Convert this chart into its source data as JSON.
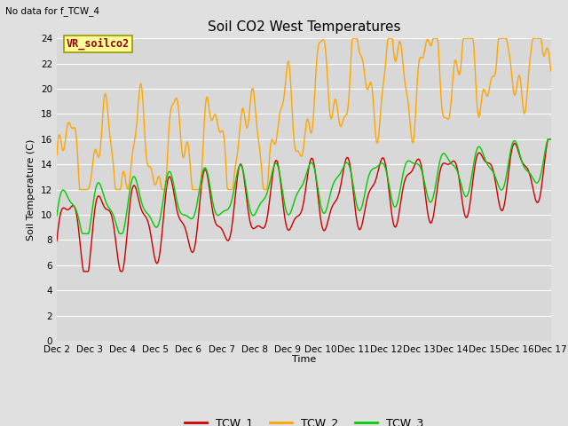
{
  "title": "Soil CO2 West Temperatures",
  "xlabel": "Time",
  "ylabel": "Soil Temperature (C)",
  "no_data_label": "No data for f_TCW_4",
  "vr_label": "VR_soilco2",
  "ylim": [
    0,
    24
  ],
  "yticks": [
    0,
    2,
    4,
    6,
    8,
    10,
    12,
    14,
    16,
    18,
    20,
    22,
    24
  ],
  "xtick_labels": [
    "Dec 2",
    "Dec 3",
    "Dec 4",
    "Dec 5",
    "Dec 6",
    "Dec 7",
    "Dec 8",
    "Dec 9",
    "Dec 10",
    "Dec 11",
    "Dec 12",
    "Dec 13",
    "Dec 14",
    "Dec 15",
    "Dec 16",
    "Dec 17"
  ],
  "legend_entries": [
    "TCW_1",
    "TCW_2",
    "TCW_3"
  ],
  "colors": {
    "TCW_1": "#cc0000",
    "TCW_2": "#ffa500",
    "TCW_3": "#00cc00",
    "fig_bg": "#e0e0e0",
    "plot_bg": "#d8d8d8",
    "grid_color": "#ffffff",
    "vr_box_bg": "#ffff99",
    "vr_box_border": "#999900",
    "vr_text": "#990000"
  },
  "figsize": [
    6.4,
    4.8
  ],
  "dpi": 100
}
